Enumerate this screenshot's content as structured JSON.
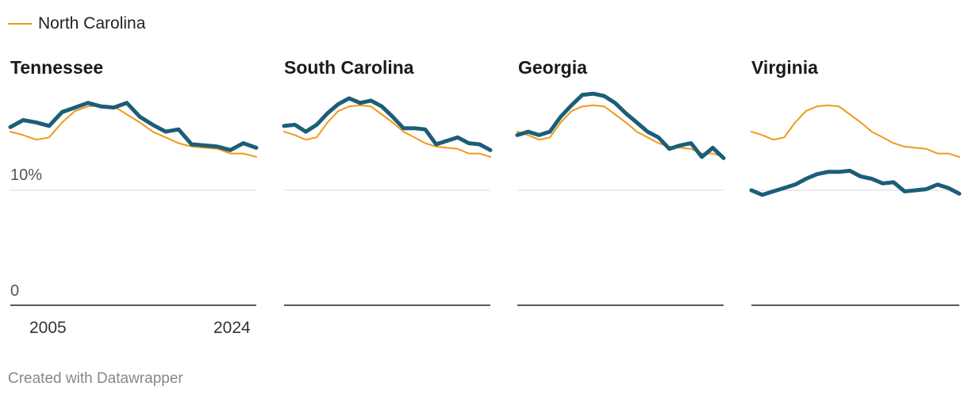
{
  "legend": {
    "label": "North Carolina"
  },
  "credit": "Created with Datawrapper",
  "colors": {
    "reference": "#ef9a19",
    "state": "#1b5e78",
    "grid": "#d9d9d9",
    "baseline": "#222222"
  },
  "chart_data": {
    "type": "line",
    "layout": "small-multiples",
    "ylim": [
      0,
      20
    ],
    "yticks": [
      {
        "value": 10,
        "label": "10%"
      },
      {
        "value": 0,
        "label": "0"
      }
    ],
    "x": [
      2005,
      2006,
      2007,
      2008,
      2009,
      2010,
      2011,
      2012,
      2013,
      2014,
      2015,
      2016,
      2017,
      2018,
      2019,
      2020,
      2021,
      2022,
      2023,
      2024
    ],
    "xtick_labels": [
      "2005",
      "2024"
    ],
    "legend_position": "top-left",
    "grid": true,
    "reference_series": {
      "name": "North Carolina",
      "values": [
        15.1,
        14.8,
        14.4,
        14.6,
        15.9,
        16.9,
        17.3,
        17.4,
        17.3,
        16.6,
        15.9,
        15.1,
        14.6,
        14.1,
        13.8,
        13.7,
        13.6,
        13.2,
        13.2,
        12.9
      ]
    },
    "panels": [
      {
        "title": "Tennessee",
        "values": [
          15.5,
          16.1,
          15.9,
          15.6,
          16.8,
          17.2,
          17.6,
          17.3,
          17.2,
          17.6,
          16.4,
          15.7,
          15.1,
          15.3,
          14.0,
          13.9,
          13.8,
          13.5,
          14.1,
          13.7
        ]
      },
      {
        "title": "South Carolina",
        "values": [
          15.6,
          15.7,
          15.1,
          15.7,
          16.7,
          17.5,
          18.0,
          17.6,
          17.8,
          17.3,
          16.4,
          15.4,
          15.4,
          15.3,
          14.0,
          14.3,
          14.6,
          14.1,
          14.0,
          13.5
        ]
      },
      {
        "title": "Georgia",
        "values": [
          14.8,
          15.1,
          14.8,
          15.1,
          16.4,
          17.4,
          18.3,
          18.4,
          18.2,
          17.6,
          16.7,
          15.9,
          15.1,
          14.6,
          13.6,
          13.9,
          14.1,
          12.9,
          13.7,
          12.8
        ]
      },
      {
        "title": "Virginia",
        "values": [
          10.0,
          9.6,
          9.9,
          10.2,
          10.5,
          11.0,
          11.4,
          11.6,
          11.6,
          11.7,
          11.2,
          11.0,
          10.6,
          10.7,
          9.9,
          10.0,
          10.1,
          10.5,
          10.2,
          9.7
        ]
      }
    ]
  }
}
